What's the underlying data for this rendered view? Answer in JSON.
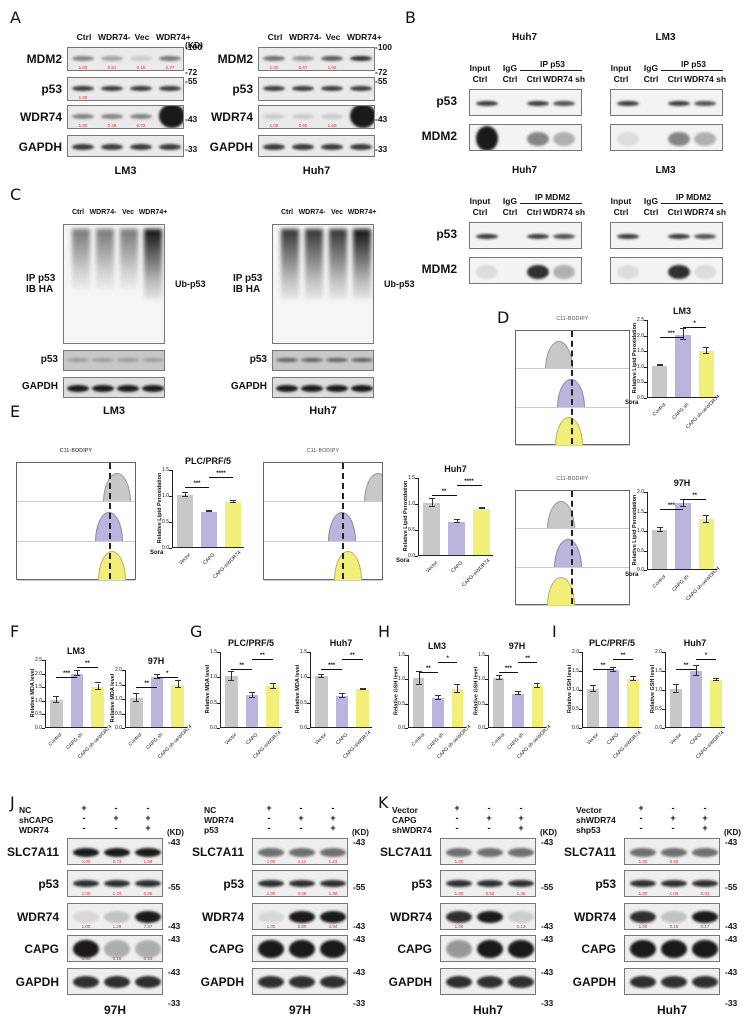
{
  "panels": {
    "A": {
      "label": "A",
      "lanes": [
        "Ctrl",
        "WDR74-",
        "Vec",
        "WDR74+"
      ],
      "kd_unit": "(KD)",
      "blots": [
        {
          "cell": "LM3",
          "rows": [
            {
              "name": "MDM2",
              "quant": [
                "1.00",
                "0.51",
                "0.15",
                "0.77"
              ]
            },
            {
              "name": "p53",
              "quant": [
                "1.00",
                "",
                "",
                ""
              ]
            },
            {
              "name": "WDR74",
              "quant": [
                "1.00",
                "0.48",
                "0.72",
                ""
              ]
            },
            {
              "name": "GAPDH",
              "quant": []
            }
          ],
          "markers": [
            "-100",
            "-72",
            "-55",
            "-43",
            "-33"
          ]
        },
        {
          "cell": "Huh7",
          "rows": [
            {
              "name": "MDM2",
              "quant": [
                "1.00",
                "0.67",
                "1.02",
                ""
              ]
            },
            {
              "name": "p53",
              "quant": [
                "",
                "",
                "",
                ""
              ]
            },
            {
              "name": "WDR74",
              "quant": [
                "1.00",
                "0.60",
                "1.60",
                ""
              ]
            },
            {
              "name": "GAPDH",
              "quant": []
            }
          ],
          "markers": [
            "-100",
            "-72",
            "-55",
            "-43",
            "-33"
          ]
        }
      ]
    },
    "B": {
      "label": "B",
      "groups": [
        {
          "cell": "Huh7",
          "ip": "IP  p53",
          "cols": [
            [
              "Input",
              "Ctrl"
            ],
            [
              "IgG",
              "Ctrl"
            ],
            [
              "",
              "Ctrl"
            ],
            [
              "",
              "WDR74 sh"
            ]
          ],
          "rows": [
            "p53",
            "MDM2"
          ]
        },
        {
          "cell": "LM3",
          "ip": "IP  p53",
          "cols": [
            [
              "Input",
              "Ctrl"
            ],
            [
              "IgG",
              "Ctrl"
            ],
            [
              "",
              "Ctrl"
            ],
            [
              "",
              "WDR74 sh"
            ]
          ],
          "rows": [
            "p53",
            "MDM2"
          ]
        },
        {
          "cell": "Huh7",
          "ip": "IP  MDM2",
          "cols": [
            [
              "Input",
              "Ctrl"
            ],
            [
              "IgG",
              "Ctrl"
            ],
            [
              "",
              "Ctrl"
            ],
            [
              "",
              "WDR74 sh"
            ]
          ],
          "rows": [
            "p53",
            "MDM2"
          ]
        },
        {
          "cell": "LM3",
          "ip": "IP  MDM2",
          "cols": [
            [
              "Input",
              "Ctrl"
            ],
            [
              "IgG",
              "Ctrl"
            ],
            [
              "",
              "Ctrl"
            ],
            [
              "",
              "WDR74 sh"
            ]
          ],
          "rows": [
            "p53",
            "MDM2"
          ]
        }
      ]
    },
    "C": {
      "label": "C",
      "lanes": [
        "Ctrl",
        "WDR74-",
        "Vec",
        "WDR74+"
      ],
      "ip_label_1": "IP p53",
      "ip_label_2": "IB HA",
      "ub_label": "Ub-p53",
      "rows": [
        "p53",
        "GAPDH"
      ],
      "cells": [
        "LM3",
        "Huh7"
      ]
    },
    "D": {
      "label": "D",
      "flow_title": "C11-BODIPY",
      "sora_label": "Sora"
    },
    "E": {
      "label": "E",
      "flow_title": "C11-BODIPY",
      "sora_label": "Sora"
    },
    "F": {
      "label": "F"
    },
    "G": {
      "label": "G"
    },
    "H": {
      "label": "H"
    },
    "I": {
      "label": "I"
    },
    "J": {
      "label": "J",
      "kd_unit": "(KD)",
      "blots": [
        {
          "cell": "97H",
          "conditions": [
            {
              "name": "NC",
              "signs": [
                "+",
                "-",
                "-"
              ]
            },
            {
              "name": "shCAPG",
              "signs": [
                "-",
                "+",
                "+"
              ]
            },
            {
              "name": "WDR74",
              "signs": [
                "-",
                "-",
                "+"
              ]
            }
          ],
          "rows": [
            {
              "name": "SLC7A11",
              "quant": [
                "1.00",
                "0.73",
                "1.08"
              ],
              "marker": "-43"
            },
            {
              "name": "p53",
              "quant": [
                "1.00",
                "1.20",
                "0.86"
              ],
              "marker": "-55"
            },
            {
              "name": "WDR74",
              "quant": [
                "1.00",
                "1.29",
                "7.37"
              ],
              "marker": "-43"
            },
            {
              "name": "CAPG",
              "quant": [
                "1.00",
                "0.16",
                "0.53"
              ],
              "marker": "-43"
            },
            {
              "name": "GAPDH",
              "quant": [],
              "marker": "-43",
              "marker2": "-33"
            }
          ]
        },
        {
          "cell": "97H",
          "conditions": [
            {
              "name": "NC",
              "signs": [
                "+",
                "-",
                "-"
              ]
            },
            {
              "name": "WDR74",
              "signs": [
                "-",
                "+",
                "+"
              ]
            },
            {
              "name": "p53",
              "signs": [
                "-",
                "-",
                "+"
              ]
            }
          ],
          "rows": [
            {
              "name": "SLC7A11",
              "quant": [
                "1.00",
                "1.11",
                "1.23"
              ],
              "marker": "-43"
            },
            {
              "name": "p53",
              "quant": [
                "1.00",
                "0.58",
                "1.90"
              ],
              "marker": "-55"
            },
            {
              "name": "WDR74",
              "quant": [
                "1.00",
                "5.80",
                "4.94"
              ],
              "marker": "-43"
            },
            {
              "name": "CAPG",
              "quant": [
                "",
                "",
                ""
              ],
              "marker": "-43"
            },
            {
              "name": "GAPDH",
              "quant": [],
              "marker": "-43",
              "marker2": "-33"
            }
          ]
        }
      ]
    },
    "K": {
      "label": "K",
      "kd_unit": "(KD)",
      "blots": [
        {
          "cell": "Huh7",
          "conditions": [
            {
              "name": "Vector",
              "signs": [
                "+",
                "-",
                "-"
              ]
            },
            {
              "name": "CAPG",
              "signs": [
                "-",
                "+",
                "+"
              ]
            },
            {
              "name": "shWDR74",
              "signs": [
                "-",
                "-",
                "+"
              ]
            }
          ],
          "rows": [
            {
              "name": "SLC7A11",
              "quant": [
                "1.00",
                "",
                ""
              ],
              "marker": "-43"
            },
            {
              "name": "p53",
              "quant": [
                "1.00",
                "0.52",
                "1.38"
              ],
              "marker": "-55"
            },
            {
              "name": "WDR74",
              "quant": [
                "1.00",
                "",
                "0.13"
              ],
              "marker": "-43"
            },
            {
              "name": "CAPG",
              "quant": [
                "",
                "",
                ""
              ],
              "marker": "-43"
            },
            {
              "name": "GAPDH",
              "quant": [],
              "marker": "-43",
              "marker2": "-33"
            }
          ]
        },
        {
          "cell": "Huh7",
          "conditions": [
            {
              "name": "Vector",
              "signs": [
                "+",
                "-",
                "-"
              ]
            },
            {
              "name": "shWDR74",
              "signs": [
                "-",
                "+",
                "+"
              ]
            },
            {
              "name": "shp53",
              "signs": [
                "-",
                "-",
                "+"
              ]
            }
          ],
          "rows": [
            {
              "name": "SLC7A11",
              "quant": [
                "1.00",
                "0.92",
                ""
              ],
              "marker": "-43"
            },
            {
              "name": "p53",
              "quant": [
                "1.00",
                "1.06",
                "0.34"
              ],
              "marker": "-55"
            },
            {
              "name": "WDR74",
              "quant": [
                "1.00",
                "0.18",
                "0.17"
              ],
              "marker": "-43"
            },
            {
              "name": "CAPG",
              "quant": [
                "",
                "",
                ""
              ],
              "marker": "-43"
            },
            {
              "name": "GAPDH",
              "quant": [],
              "marker": "-43",
              "marker2": "-33"
            }
          ]
        }
      ]
    }
  },
  "colors": {
    "control_gray": "#c8c8c8",
    "capg_purple": "#b9b5dc",
    "rescue_yellow": "#f2ee7a",
    "quant_red": "#d33333"
  },
  "chart_data": [
    {
      "id": "D-LM3",
      "type": "bar",
      "title": "LM3",
      "ylabel": "Relative Lipid Peroxidation",
      "categories": [
        "Control",
        "CAPG sh",
        "CAPG sh-oeWDR74"
      ],
      "values": [
        1.0,
        2.0,
        1.47
      ],
      "errors": [
        0.02,
        0.17,
        0.09
      ],
      "ylim": [
        0,
        2.5
      ],
      "yticks": [
        "0.0",
        "0.5",
        "1.0",
        "1.5",
        "2.0",
        "2.5"
      ],
      "sig": [
        {
          "pair": [
            0,
            1
          ],
          "label": "***"
        },
        {
          "pair": [
            1,
            2
          ],
          "label": "*"
        }
      ]
    },
    {
      "id": "D-97H",
      "type": "bar",
      "title": "97H",
      "ylabel": "Relative Lipid Peroxidation",
      "categories": [
        "Control",
        "CAPG sh",
        "CAPG sh-oeWDR74"
      ],
      "values": [
        1.0,
        1.68,
        1.27
      ],
      "errors": [
        0.05,
        0.1,
        0.09
      ],
      "ylim": [
        0,
        2.0
      ],
      "yticks": [
        "0.0",
        "0.5",
        "1.0",
        "1.5",
        "2.0"
      ],
      "sig": [
        {
          "pair": [
            0,
            1
          ],
          "label": "***"
        },
        {
          "pair": [
            1,
            2
          ],
          "label": "**"
        }
      ]
    },
    {
      "id": "E-PLC",
      "type": "bar",
      "title": "PLC/PRF/5",
      "ylabel": "Relative Lipid Peroxidation",
      "categories": [
        "Vector",
        "CAPG",
        "CAPG-siWDR74"
      ],
      "values": [
        1.0,
        0.68,
        0.87
      ],
      "errors": [
        0.04,
        0.01,
        0.02
      ],
      "ylim": [
        0,
        1.5
      ],
      "yticks": [
        "0.0",
        "0.5",
        "1.0",
        "1.5"
      ],
      "sig": [
        {
          "pair": [
            0,
            1
          ],
          "label": "***"
        },
        {
          "pair": [
            1,
            2
          ],
          "label": "****"
        }
      ]
    },
    {
      "id": "E-Huh7",
      "type": "bar",
      "title": "Huh7",
      "ylabel": "Relative Lipid Peroxidation",
      "categories": [
        "Vector",
        "CAPG",
        "CAPG-siWDR74"
      ],
      "values": [
        1.0,
        0.64,
        0.89
      ],
      "errors": [
        0.07,
        0.03,
        0.01
      ],
      "ylim": [
        0,
        1.5
      ],
      "yticks": [
        "0.0",
        "0.5",
        "1.0",
        "1.5"
      ],
      "sig": [
        {
          "pair": [
            0,
            1
          ],
          "label": "**"
        },
        {
          "pair": [
            1,
            2
          ],
          "label": "****"
        }
      ]
    },
    {
      "id": "F-LM3",
      "type": "bar",
      "title": "LM3",
      "ylabel": "Relative MDA level",
      "categories": [
        "Control",
        "CAPG sh",
        "CAPG sh-oeWDR74"
      ],
      "values": [
        1.0,
        1.96,
        1.48
      ],
      "errors": [
        0.1,
        0.1,
        0.12
      ],
      "ylim": [
        0,
        2.5
      ],
      "yticks": [
        "0.0",
        "0.5",
        "1.0",
        "1.5",
        "2.0",
        "2.5"
      ],
      "sig": [
        {
          "pair": [
            0,
            1
          ],
          "label": "***"
        },
        {
          "pair": [
            1,
            2
          ],
          "label": "**"
        }
      ]
    },
    {
      "id": "F-97H",
      "type": "bar",
      "title": "97H",
      "ylabel": "Relative MDA level",
      "categories": [
        "Control",
        "CAPG sh",
        "CAPG sh-oeWDR74"
      ],
      "values": [
        1.0,
        1.73,
        1.46
      ],
      "errors": [
        0.14,
        0.08,
        0.11
      ],
      "ylim": [
        0,
        2.0
      ],
      "yticks": [
        "0.0",
        "0.5",
        "1.0",
        "1.5",
        "2.0"
      ],
      "sig": [
        {
          "pair": [
            0,
            1
          ],
          "label": "**"
        },
        {
          "pair": [
            1,
            2
          ],
          "label": "*"
        }
      ]
    },
    {
      "id": "G-PLC",
      "type": "bar",
      "title": "PLC/PRF/5",
      "ylabel": "Relative MDA level",
      "categories": [
        "Vector",
        "CAPG",
        "CAPG-siWDR74"
      ],
      "values": [
        1.0,
        0.63,
        0.8
      ],
      "errors": [
        0.09,
        0.05,
        0.04
      ],
      "ylim": [
        0,
        1.5
      ],
      "yticks": [
        "0.0",
        "0.5",
        "1.0",
        "1.5"
      ],
      "sig": [
        {
          "pair": [
            0,
            1
          ],
          "label": "**"
        },
        {
          "pair": [
            1,
            2
          ],
          "label": "**"
        }
      ]
    },
    {
      "id": "G-Huh7",
      "type": "bar",
      "title": "Huh7",
      "ylabel": "Relative MDA level",
      "categories": [
        "Vector",
        "CAPG",
        "CAPG-siWDR74"
      ],
      "values": [
        1.0,
        0.61,
        0.75
      ],
      "errors": [
        0.03,
        0.04,
        0.01
      ],
      "ylim": [
        0,
        1.5
      ],
      "yticks": [
        "0.0",
        "0.5",
        "1.0",
        "1.5"
      ],
      "sig": [
        {
          "pair": [
            0,
            1
          ],
          "label": "***"
        },
        {
          "pair": [
            1,
            2
          ],
          "label": "**"
        }
      ]
    },
    {
      "id": "H-LM3",
      "type": "bar",
      "title": "LM3",
      "ylabel": "Relative GSH level",
      "categories": [
        "Control",
        "CAPG sh",
        "CAPG sh-oeWDR74"
      ],
      "values": [
        1.0,
        0.6,
        0.78
      ],
      "errors": [
        0.13,
        0.04,
        0.08
      ],
      "ylim": [
        0,
        1.5
      ],
      "yticks": [
        "0.0",
        "0.5",
        "1.0",
        "1.5"
      ],
      "sig": [
        {
          "pair": [
            0,
            1
          ],
          "label": "**"
        },
        {
          "pair": [
            1,
            2
          ],
          "label": "*"
        }
      ]
    },
    {
      "id": "H-97H",
      "type": "bar",
      "title": "97H",
      "ylabel": "Relative GSH level",
      "categories": [
        "Control",
        "CAPG sh",
        "CAPG sh-oeWDR74"
      ],
      "values": [
        1.0,
        0.68,
        0.84
      ],
      "errors": [
        0.04,
        0.03,
        0.04
      ],
      "ylim": [
        0,
        1.5
      ],
      "yticks": [
        "0.0",
        "0.5",
        "1.0",
        "1.5"
      ],
      "sig": [
        {
          "pair": [
            0,
            1
          ],
          "label": "***"
        },
        {
          "pair": [
            1,
            2
          ],
          "label": "**"
        }
      ]
    },
    {
      "id": "I-PLC",
      "type": "bar",
      "title": "PLC/PRF/5",
      "ylabel": "Relative GSH level",
      "categories": [
        "Vector",
        "CAPG",
        "CAPG-siWDR74"
      ],
      "values": [
        1.0,
        1.51,
        1.26
      ],
      "errors": [
        0.09,
        0.05,
        0.06
      ],
      "ylim": [
        0,
        2.0
      ],
      "yticks": [
        "0.0",
        "0.5",
        "1.0",
        "1.5",
        "2.0"
      ],
      "sig": [
        {
          "pair": [
            0,
            1
          ],
          "label": "**"
        },
        {
          "pair": [
            1,
            2
          ],
          "label": "**"
        }
      ]
    },
    {
      "id": "I-Huh7",
      "type": "bar",
      "title": "Huh7",
      "ylabel": "Relative GSH level",
      "categories": [
        "Vector",
        "CAPG",
        "CAPG-siWDR74"
      ],
      "values": [
        1.0,
        1.48,
        1.24
      ],
      "errors": [
        0.1,
        0.13,
        0.03
      ],
      "ylim": [
        0,
        2.0
      ],
      "yticks": [
        "0.0",
        "0.5",
        "1.0",
        "1.5",
        "2.0"
      ],
      "sig": [
        {
          "pair": [
            0,
            1
          ],
          "label": "**"
        },
        {
          "pair": [
            1,
            2
          ],
          "label": "*"
        }
      ]
    }
  ]
}
